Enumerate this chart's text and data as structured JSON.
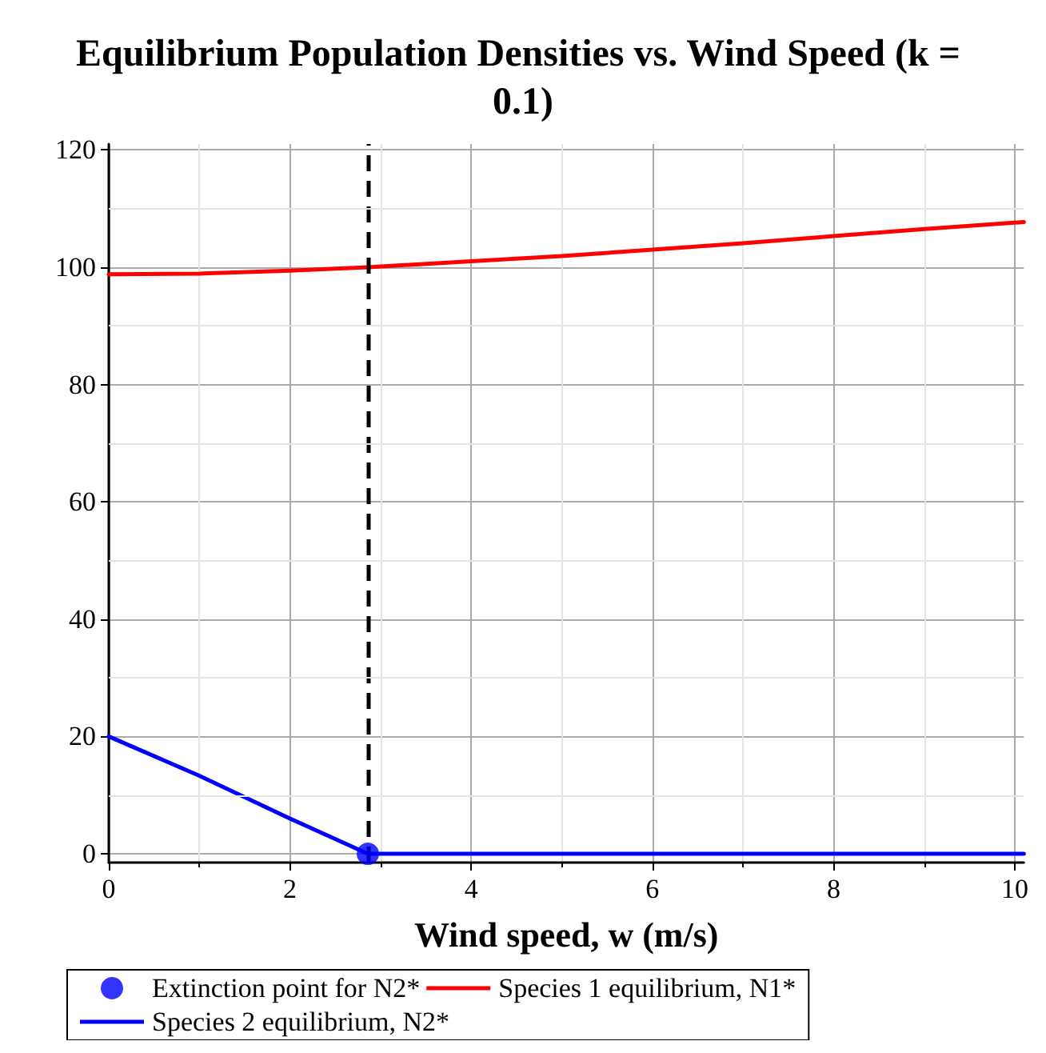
{
  "chart_data": {
    "type": "line",
    "title": "Equilibrium Population Densities vs. Wind Speed (k = 0.1)",
    "xlabel": "Wind speed, w (m/s)",
    "xlim": [
      0,
      10.1
    ],
    "xticks": [
      0,
      2,
      4,
      6,
      8,
      10
    ],
    "ylim": [
      -1.5,
      121
    ],
    "yticks": [
      0,
      20,
      40,
      60,
      80,
      100,
      120
    ],
    "grid": true,
    "legend": "bottom",
    "line_style": "solid",
    "marker": "none",
    "series": [
      {
        "name": "Extinction point for N2*",
        "type": "scatter",
        "marker": "circle",
        "color": "#0000ff",
        "x": [
          2.86
        ],
        "values": [
          0
        ]
      },
      {
        "name": "Species 1 equilibrium, N1*",
        "color": "#ff0000",
        "x": [
          0,
          1,
          2,
          2.86,
          4,
          5,
          6,
          7,
          8,
          9,
          10.1
        ],
        "values": [
          98.8,
          98.9,
          99.4,
          100,
          101,
          101.9,
          103,
          104.1,
          105.3,
          106.5,
          107.7
        ]
      },
      {
        "name": "Species 2 equilibrium, N2*",
        "color": "#0000ff",
        "x": [
          0,
          1,
          2,
          2.86,
          4,
          6,
          8,
          10.1
        ],
        "values": [
          20,
          13.3,
          6,
          0,
          0,
          0,
          0,
          0
        ]
      }
    ],
    "ref_lines": [
      {
        "axis": "x",
        "value": 2.86,
        "color": "#000000",
        "line_style": "dashed"
      }
    ]
  }
}
